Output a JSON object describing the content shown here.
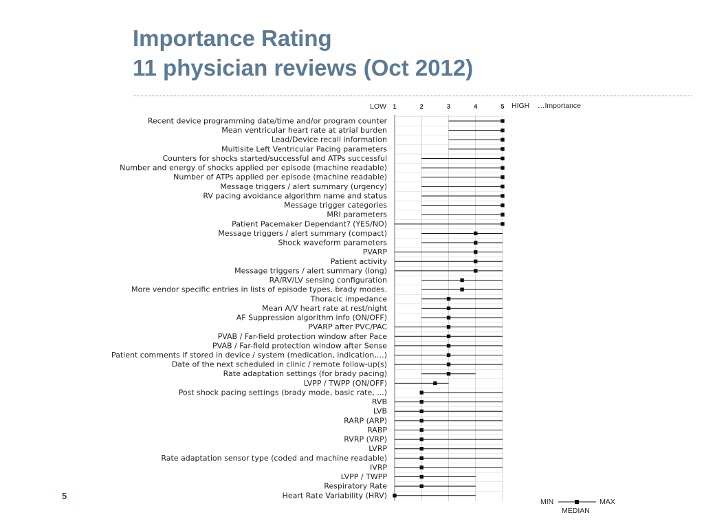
{
  "slide": {
    "title_line1": "Importance Rating",
    "title_line2": "11 physician reviews (Oct 2012)",
    "page_number": "5"
  },
  "chart_data": {
    "type": "range",
    "axis_low_label": "LOW",
    "axis_high_label": "HIGH",
    "axis_suffix": "…Importance",
    "ticks": [
      1,
      2,
      3,
      4,
      5
    ],
    "xlim": [
      1,
      5
    ],
    "legend": {
      "min": "MIN",
      "max": "MAX",
      "median": "MEDIAN"
    },
    "rows": [
      {
        "label": "Recent device programming date/time and/or program counter",
        "min": 3,
        "median": 5,
        "max": 5
      },
      {
        "label": "Mean ventricular heart rate at atrial burden",
        "min": 3,
        "median": 5,
        "max": 5
      },
      {
        "label": "Lead/Device recall information",
        "min": 3,
        "median": 5,
        "max": 5
      },
      {
        "label": "Multisite Left Ventricular Pacing parameters",
        "min": 3,
        "median": 5,
        "max": 5
      },
      {
        "label": "Counters for shocks started/successful and ATPs successful",
        "min": 2,
        "median": 5,
        "max": 5
      },
      {
        "label": "Number and energy of shocks applied per episode (machine readable)",
        "min": 2,
        "median": 5,
        "max": 5
      },
      {
        "label": "Number of ATPs applied per episode (machine readable)",
        "min": 2,
        "median": 5,
        "max": 5
      },
      {
        "label": "Message triggers / alert summary (urgency)",
        "min": 2,
        "median": 5,
        "max": 5
      },
      {
        "label": "RV pacing avoidance algorithm name and status",
        "min": 2,
        "median": 5,
        "max": 5
      },
      {
        "label": "Message trigger categories",
        "min": 2,
        "median": 5,
        "max": 5
      },
      {
        "label": "MRI parameters",
        "min": 2,
        "median": 5,
        "max": 5
      },
      {
        "label": "Patient Pacemaker Dependant? (YES/NO)",
        "min": 1,
        "median": 5,
        "max": 5
      },
      {
        "label": "Message triggers / alert summary (compact)",
        "min": 2,
        "median": 4,
        "max": 5
      },
      {
        "label": "Shock waveform parameters",
        "min": 2,
        "median": 4,
        "max": 5
      },
      {
        "label": "PVARP",
        "min": 1,
        "median": 4,
        "max": 5
      },
      {
        "label": "Patient activity",
        "min": 1,
        "median": 4,
        "max": 5
      },
      {
        "label": "Message triggers / alert summary (long)",
        "min": 1,
        "median": 4,
        "max": 5
      },
      {
        "label": "RA/RV/LV sensing configuration",
        "min": 2,
        "median": 3.5,
        "max": 5
      },
      {
        "label": "More vendor specific entries in lists of episode types, brady modes.",
        "min": 2,
        "median": 3.5,
        "max": 5
      },
      {
        "label": "Thoracic impedance",
        "min": 2,
        "median": 3,
        "max": 5
      },
      {
        "label": "Mean A/V heart rate at rest/night",
        "min": 2,
        "median": 3,
        "max": 5
      },
      {
        "label": "AF Suppression algorithm info (ON/OFF)",
        "min": 2,
        "median": 3,
        "max": 5
      },
      {
        "label": "PVARP after PVC/PAC",
        "min": 1,
        "median": 3,
        "max": 5
      },
      {
        "label": "PVAB / Far-field protection window after Pace",
        "min": 1,
        "median": 3,
        "max": 5
      },
      {
        "label": "PVAB / Far-field protection window after Sense",
        "min": 1,
        "median": 3,
        "max": 5
      },
      {
        "label": "Patient comments if stored in device / system (medication, indication,…)",
        "min": 1,
        "median": 3,
        "max": 5
      },
      {
        "label": "Date of the next scheduled in clinic / remote follow-up(s)",
        "min": 1,
        "median": 3,
        "max": 5
      },
      {
        "label": "Rate adaptation settings (for brady pacing)",
        "min": 2,
        "median": 3,
        "max": 4
      },
      {
        "label": "LVPP / TWPP (ON/OFF)",
        "min": 1,
        "median": 2.5,
        "max": 3
      },
      {
        "label": "Post shock pacing settings (brady mode, basic rate, ...)",
        "min": 2,
        "median": 2,
        "max": 5
      },
      {
        "label": "RVB",
        "min": 1,
        "median": 2,
        "max": 5
      },
      {
        "label": "LVB",
        "min": 1,
        "median": 2,
        "max": 5
      },
      {
        "label": "RARP (ARP)",
        "min": 1,
        "median": 2,
        "max": 5
      },
      {
        "label": "RABP",
        "min": 1,
        "median": 2,
        "max": 5
      },
      {
        "label": "RVRP (VRP)",
        "min": 1,
        "median": 2,
        "max": 5
      },
      {
        "label": "LVRP",
        "min": 1,
        "median": 2,
        "max": 5
      },
      {
        "label": "Rate adaptation sensor type (coded and machine readable)",
        "min": 1,
        "median": 2,
        "max": 5
      },
      {
        "label": "IVRP",
        "min": 1,
        "median": 2,
        "max": 5
      },
      {
        "label": "LVPP / TWPP",
        "min": 1,
        "median": 2,
        "max": 4
      },
      {
        "label": "Respiratory Rate",
        "min": 1,
        "median": 2,
        "max": 4
      },
      {
        "label": "Heart Rate Variability (HRV)",
        "min": 1,
        "median": 1,
        "max": 4
      }
    ]
  }
}
